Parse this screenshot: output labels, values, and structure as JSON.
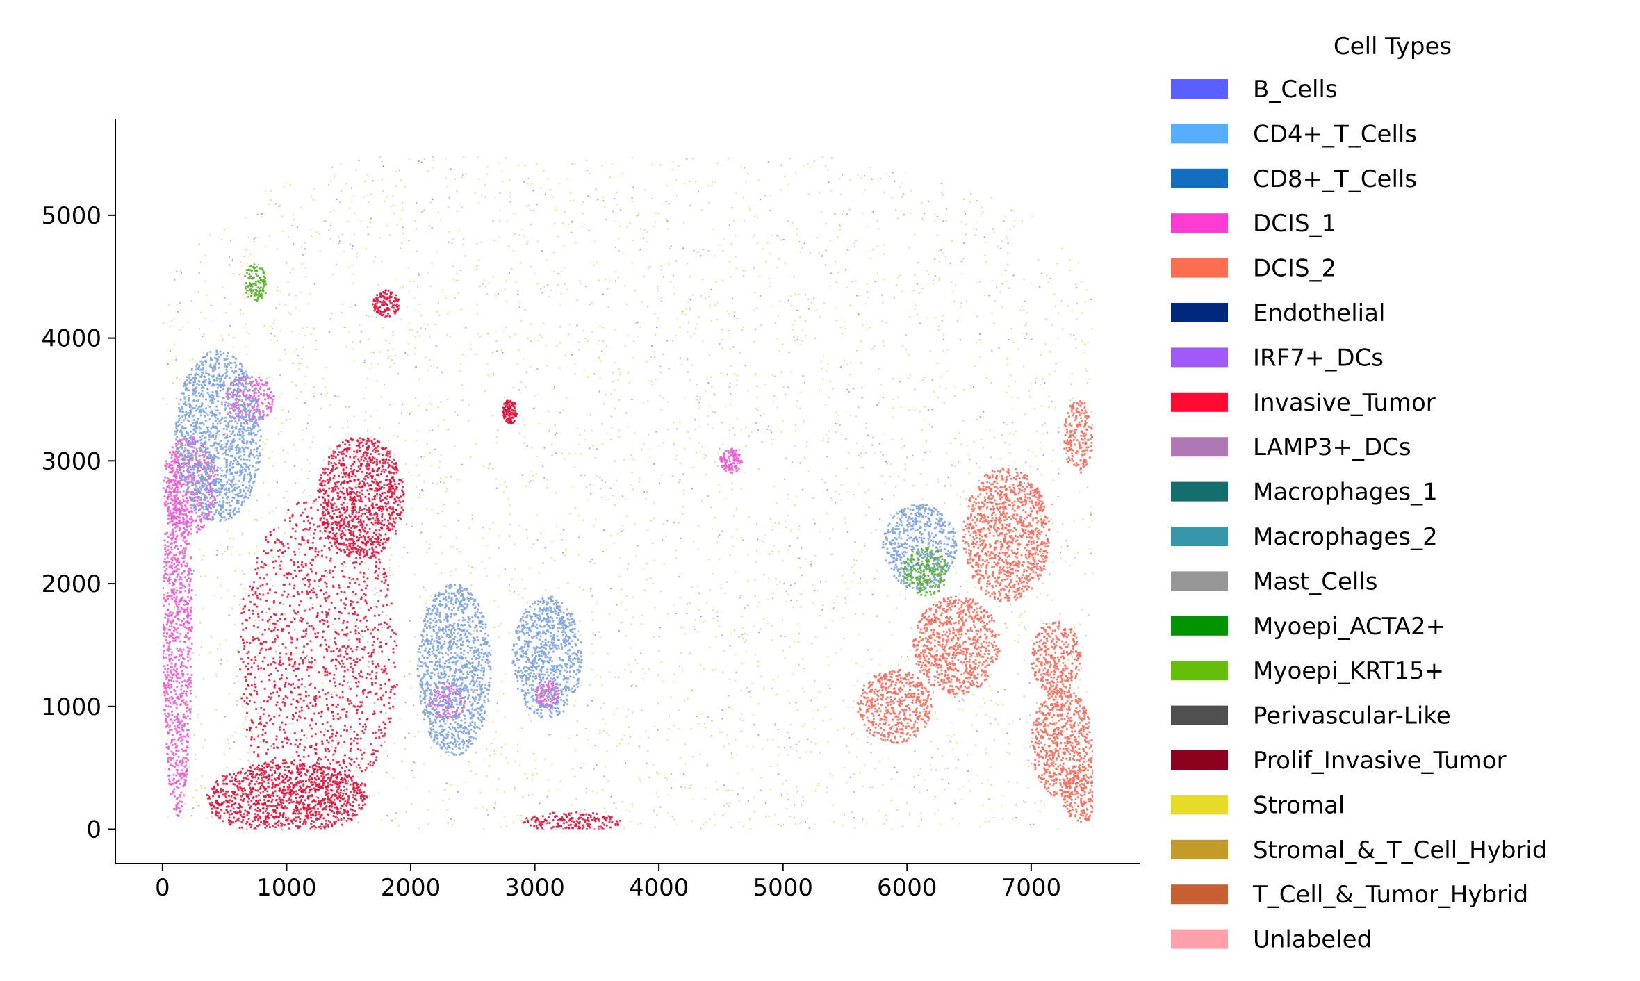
{
  "chart_data": {
    "type": "scatter",
    "title": "",
    "xlabel": "",
    "ylabel": "",
    "xlim": [
      -380,
      7880
    ],
    "ylim": [
      -280,
      5780
    ],
    "x_ticks": [
      0,
      1000,
      2000,
      3000,
      4000,
      5000,
      6000,
      7000
    ],
    "x_tick_labels": [
      "0",
      "1000",
      "2000",
      "3000",
      "4000",
      "5000",
      "6000",
      "7000"
    ],
    "y_ticks": [
      0,
      1000,
      2000,
      3000,
      4000,
      5000
    ],
    "y_tick_labels": [
      "0",
      "1000",
      "2000",
      "3000",
      "4000",
      "5000"
    ],
    "grid": false,
    "legend_title": "Cell Types",
    "legend_position": "right, outside plot",
    "legend": [
      {
        "name": "B_Cells",
        "color": "#5A5FFF"
      },
      {
        "name": "CD4+_T_Cells",
        "color": "#55AEFF"
      },
      {
        "name": "CD8+_T_Cells",
        "color": "#146EC0"
      },
      {
        "name": "DCIS_1",
        "color": "#FF3CD2"
      },
      {
        "name": "DCIS_2",
        "color": "#FF6E50"
      },
      {
        "name": "Endothelial",
        "color": "#00287D"
      },
      {
        "name": "IRF7+_DCs",
        "color": "#A05AFA"
      },
      {
        "name": "Invasive_Tumor",
        "color": "#FF0A32"
      },
      {
        "name": "LAMP3+_DCs",
        "color": "#AF78B4"
      },
      {
        "name": "Macrophages_1",
        "color": "#146E6E"
      },
      {
        "name": "Macrophages_2",
        "color": "#3796AA"
      },
      {
        "name": "Mast_Cells",
        "color": "#969696"
      },
      {
        "name": "Myoepi_ACTA2+",
        "color": "#009400"
      },
      {
        "name": "Myoepi_KRT15+",
        "color": "#64BE0A"
      },
      {
        "name": "Perivascular-Like",
        "color": "#505050"
      },
      {
        "name": "Prolif_Invasive_Tumor",
        "color": "#8C001E"
      },
      {
        "name": "Stromal",
        "color": "#E6DC28"
      },
      {
        "name": "Stromal_&_T_Cell_Hybrid",
        "color": "#C39B28"
      },
      {
        "name": "T_Cell_&_Tumor_Hybrid",
        "color": "#C85F32"
      },
      {
        "name": "Unlabeled",
        "color": "#FFA0AA"
      }
    ],
    "regions": [
      {
        "label": "Invasive_Tumor",
        "color": "#DC143C",
        "cx": 1250,
        "cy": 1400,
        "rx": 650,
        "ry": 1300
      },
      {
        "label": "Invasive_Tumor",
        "color": "#DC143C",
        "cx": 1600,
        "cy": 2700,
        "rx": 350,
        "ry": 500
      },
      {
        "label": "Invasive_Tumor",
        "color": "#DC143C",
        "cx": 1000,
        "cy": 250,
        "rx": 650,
        "ry": 300
      },
      {
        "label": "Invasive_Tumor",
        "color": "#DC143C",
        "cx": 3300,
        "cy": 60,
        "rx": 400,
        "ry": 80
      },
      {
        "label": "Invasive_Tumor",
        "color": "#DC143C",
        "cx": 1800,
        "cy": 4280,
        "rx": 110,
        "ry": 110
      },
      {
        "label": "Invasive_Tumor",
        "color": "#DC143C",
        "cx": 2800,
        "cy": 3400,
        "rx": 60,
        "ry": 100
      },
      {
        "label": "DCIS_1",
        "color": "#E860D0",
        "cx": 120,
        "cy": 1600,
        "rx": 120,
        "ry": 1500
      },
      {
        "label": "DCIS_1",
        "color": "#E860D0",
        "cx": 220,
        "cy": 2800,
        "rx": 220,
        "ry": 400
      },
      {
        "label": "DCIS_1",
        "color": "#E860D0",
        "cx": 2300,
        "cy": 1050,
        "rx": 150,
        "ry": 150
      },
      {
        "label": "DCIS_1",
        "color": "#E860D0",
        "cx": 3100,
        "cy": 1100,
        "rx": 100,
        "ry": 120
      },
      {
        "label": "DCIS_1",
        "color": "#E860D0",
        "cx": 4580,
        "cy": 3000,
        "rx": 90,
        "ry": 100
      },
      {
        "label": "DCIS_1",
        "color": "#E860D0",
        "cx": 700,
        "cy": 3500,
        "rx": 200,
        "ry": 200
      },
      {
        "label": "DCIS_2",
        "color": "#F07060",
        "cx": 6800,
        "cy": 2400,
        "rx": 350,
        "ry": 550
      },
      {
        "label": "DCIS_2",
        "color": "#F07060",
        "cx": 6400,
        "cy": 1500,
        "rx": 350,
        "ry": 400
      },
      {
        "label": "DCIS_2",
        "color": "#F07060",
        "cx": 7200,
        "cy": 1400,
        "rx": 200,
        "ry": 300
      },
      {
        "label": "DCIS_2",
        "color": "#F07060",
        "cx": 7250,
        "cy": 700,
        "rx": 250,
        "ry": 450
      },
      {
        "label": "DCIS_2",
        "color": "#F07060",
        "cx": 7380,
        "cy": 3200,
        "rx": 120,
        "ry": 300
      },
      {
        "label": "DCIS_2",
        "color": "#F07060",
        "cx": 5900,
        "cy": 1000,
        "rx": 300,
        "ry": 300
      },
      {
        "label": "DCIS_2",
        "color": "#F07060",
        "cx": 7400,
        "cy": 300,
        "rx": 150,
        "ry": 250
      },
      {
        "label": "CD4+_T_Cells",
        "color": "#7FA5DC",
        "cx": 450,
        "cy": 3200,
        "rx": 350,
        "ry": 700
      },
      {
        "label": "CD4+_T_Cells",
        "color": "#7FA5DC",
        "cx": 2350,
        "cy": 1300,
        "rx": 300,
        "ry": 700
      },
      {
        "label": "CD4+_T_Cells",
        "color": "#7FA5DC",
        "cx": 3100,
        "cy": 1400,
        "rx": 280,
        "ry": 500
      },
      {
        "label": "CD4+_T_Cells",
        "color": "#7FA5DC",
        "cx": 6100,
        "cy": 2300,
        "rx": 300,
        "ry": 350
      },
      {
        "label": "Myoepi_KRT15+",
        "color": "#5CB030",
        "cx": 6150,
        "cy": 2100,
        "rx": 180,
        "ry": 200
      },
      {
        "label": "Myoepi_KRT15+",
        "color": "#5CB030",
        "cx": 750,
        "cy": 4450,
        "rx": 100,
        "ry": 150
      }
    ]
  }
}
